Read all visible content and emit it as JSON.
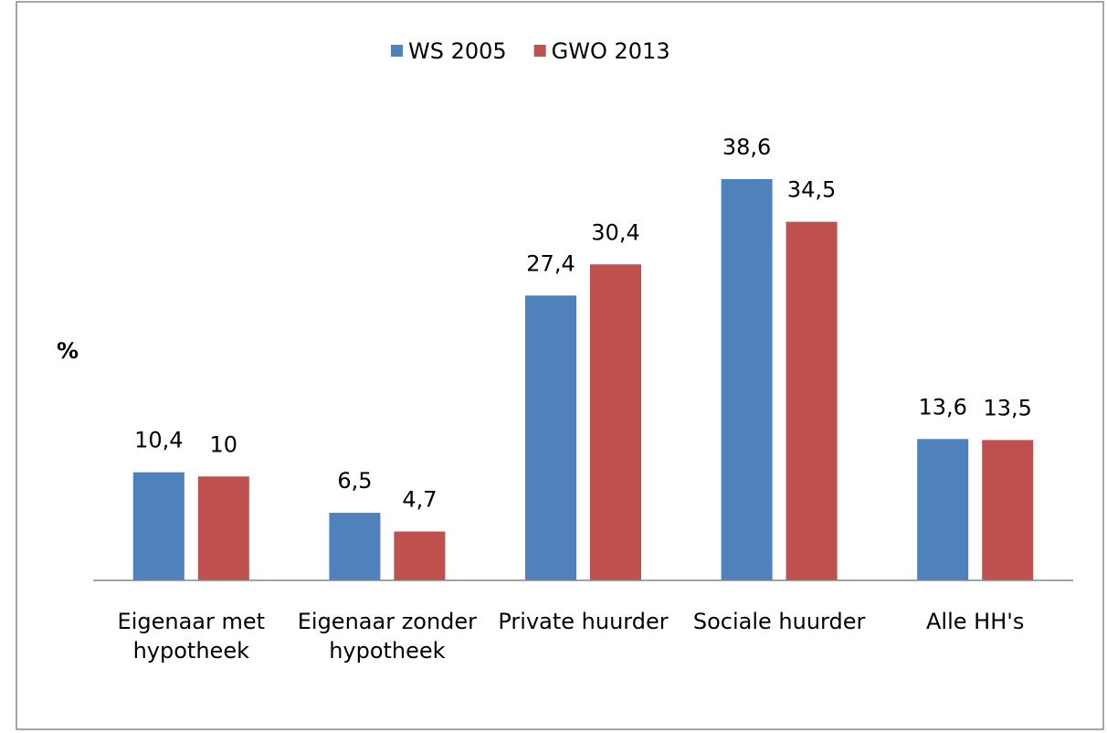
{
  "chart_data": {
    "type": "bar",
    "legend": "top",
    "y_label": "%",
    "categories": [
      "Eigenaar met hypotheek",
      "Eigenaar zonder hypotheek",
      "Private huurder",
      "Sociale huurder",
      "Alle HH's"
    ],
    "series": [
      {
        "name": "WS 2005",
        "color": "#4f81bd",
        "values": [
          10.4,
          6.5,
          27.4,
          38.6,
          13.6
        ],
        "value_labels": [
          "10,4",
          "6,5",
          "27,4",
          "38,6",
          "13,6"
        ]
      },
      {
        "name": "GWO 2013",
        "color": "#c0504d",
        "values": [
          10,
          4.7,
          30.4,
          34.5,
          13.5
        ],
        "value_labels": [
          "10",
          "4,7",
          "30,4",
          "34,5",
          "13,5"
        ]
      }
    ]
  }
}
